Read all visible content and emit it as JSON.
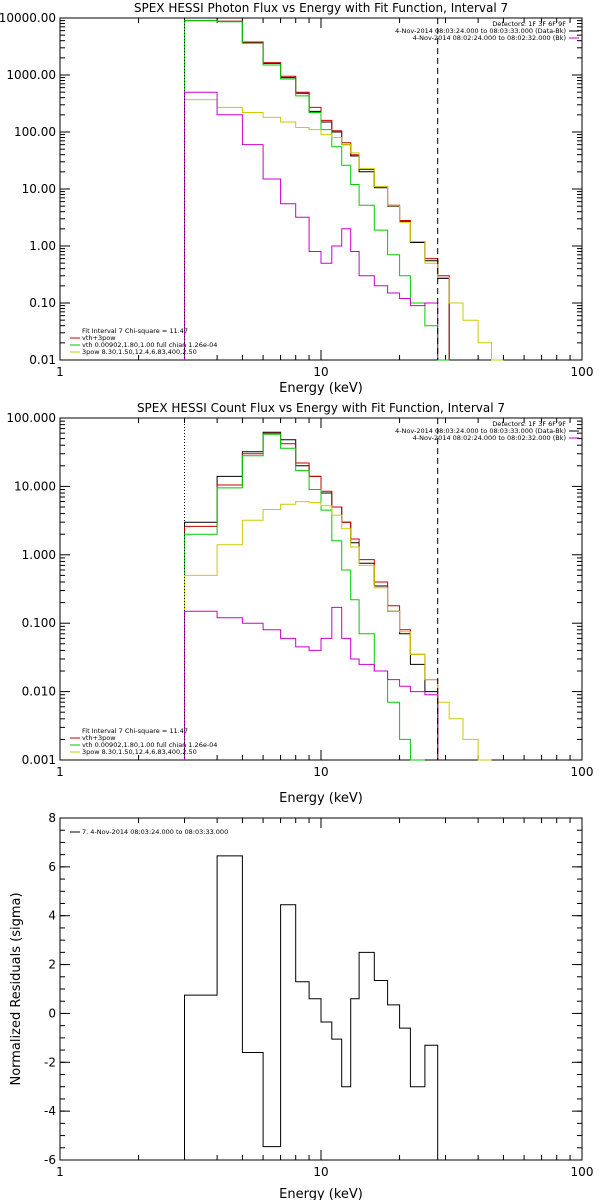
{
  "chart_data": [
    {
      "type": "step-line",
      "title": "SPEX HESSI Photon Flux vs Energy with Fit Function, Interval 7",
      "xlabel": "Energy (keV)",
      "xscale": "log",
      "yscale": "log",
      "xlim": [
        1,
        100
      ],
      "ylim": [
        0.01,
        10000
      ],
      "ytick_labels": [
        "0.01",
        "0.10",
        "1.00",
        "10.00",
        "100.00",
        "1000.00",
        "10000.00"
      ],
      "ytick_values": [
        0.01,
        0.1,
        1,
        10,
        100,
        1000,
        10000
      ],
      "xtick_labels": [
        "1",
        "10",
        "100"
      ],
      "xtick_values": [
        1,
        10,
        100
      ],
      "energy_edges": [
        3,
        4,
        5,
        6,
        7,
        8,
        9,
        10,
        11,
        12,
        13,
        14,
        16,
        18,
        20,
        22,
        25,
        28
      ],
      "legend_right": [
        {
          "text": "Detectors: 1F 3F 6F 9F",
          "color": "#000000"
        },
        {
          "text": "4-Nov-2014 08:03:24.000 to 08:03:33.000 (Data-Bk)",
          "color": "#000000"
        },
        {
          "text": "4-Nov-2014 08:02:24.000 to 08:02:32.000 (Bk)",
          "color": "#cc00cc"
        }
      ],
      "legend_left": [
        {
          "text": "Fit Interval 7   Chi-square = 11.47",
          "color": "#000000"
        },
        {
          "text": "vth+3pow",
          "color": "#cc0000"
        },
        {
          "text": "vth 0.00902,1.80,1.00  full chian 1.26e-04",
          "color": "#00cc00"
        },
        {
          "text": "3pow 8.30,1.50,12.4,6.83,400,2.50",
          "color": "#cccc00"
        }
      ],
      "vlines": [
        {
          "x": 3,
          "style": "dotted",
          "color": "#000000"
        },
        {
          "x": 28,
          "style": "dashed",
          "color": "#000000"
        }
      ],
      "series": [
        {
          "name": "Data-Bk",
          "color": "#000000",
          "values": [
            10000,
            8700,
            3700,
            1600,
            900,
            480,
            230,
            150,
            100,
            60,
            38,
            20,
            10.5,
            5,
            2.7,
            1.15,
            0.55,
            0.27
          ]
        },
        {
          "name": "vth+3pow",
          "color": "#cc0000",
          "values": [
            9000,
            8800,
            3800,
            1650,
            950,
            500,
            270,
            160,
            105,
            65,
            40,
            22,
            11,
            5.2,
            2.8,
            1.2,
            0.6,
            0.3
          ]
        },
        {
          "name": "vth",
          "color": "#00cc00",
          "values": [
            9000,
            8600,
            3600,
            1500,
            850,
            430,
            220,
            110,
            55,
            26,
            12,
            5.2,
            1.9,
            0.7,
            0.3,
            0.1,
            0.04,
            0.01
          ]
        },
        {
          "name": "3pow",
          "color": "#cccc00",
          "values": [
            370,
            270,
            220,
            180,
            150,
            120,
            110,
            90,
            80,
            60,
            43,
            23,
            11,
            5.1,
            2.6,
            1.2,
            0.5,
            0.28,
            0.1,
            0.05,
            0.02,
            0.01
          ]
        },
        {
          "name": "Bk",
          "color": "#cc00cc",
          "values": [
            500,
            200,
            60,
            15,
            5.5,
            3.2,
            0.8,
            0.5,
            1,
            2,
            0.8,
            0.3,
            0.2,
            0.15,
            0.12,
            0.09,
            0.1
          ]
        }
      ]
    },
    {
      "type": "step-line",
      "title": "SPEX HESSI Count Flux vs Energy with Fit Function, Interval 7",
      "xlabel": "Energy (keV)",
      "xscale": "log",
      "yscale": "log",
      "xlim": [
        1,
        100
      ],
      "ylim": [
        0.001,
        100
      ],
      "ytick_labels": [
        "0.001",
        "0.010",
        "0.100",
        "1.000",
        "10.000",
        "100.000"
      ],
      "ytick_values": [
        0.001,
        0.01,
        0.1,
        1,
        10,
        100
      ],
      "xtick_labels": [
        "1",
        "10",
        "100"
      ],
      "xtick_values": [
        1,
        10,
        100
      ],
      "legend_right": [
        {
          "text": "Detectors: 1F 3F 6F 9F",
          "color": "#000000"
        },
        {
          "text": "4-Nov-2014 08:03:24.000 to 08:03:33.000 (Data-Bk)",
          "color": "#000000"
        },
        {
          "text": "4-Nov-2014 08:02:24.000 to 08:02:32.000 (Bk)",
          "color": "#cc00cc"
        }
      ],
      "legend_left": [
        {
          "text": "Fit Interval 7   Chi-square = 11.47",
          "color": "#000000"
        },
        {
          "text": "vth+3pow",
          "color": "#cc0000"
        },
        {
          "text": "vth 0.00902,1.80,1.00  full chian 1.26e-04",
          "color": "#00cc00"
        },
        {
          "text": "3pow 8.30,1.50,12.4,6.83,400,2.50",
          "color": "#cccc00"
        }
      ],
      "vlines": [
        {
          "x": 3,
          "style": "dotted",
          "color": "#000000"
        },
        {
          "x": 28,
          "style": "dashed",
          "color": "#000000"
        }
      ],
      "series": [
        {
          "name": "Data-Bk",
          "color": "#000000",
          "values": [
            3.0,
            14,
            32,
            62,
            48,
            20,
            14,
            8,
            5,
            3,
            1.5,
            0.75,
            0.35,
            0.15,
            0.07,
            0.025,
            0.01
          ]
        },
        {
          "name": "vth+3pow",
          "color": "#cc0000",
          "values": [
            2.6,
            10.5,
            30,
            60,
            42,
            22,
            14,
            8.5,
            5,
            3,
            1.7,
            0.85,
            0.4,
            0.18,
            0.08,
            0.035,
            0.015
          ]
        },
        {
          "name": "vth",
          "color": "#00cc00",
          "values": [
            2.0,
            9.5,
            28,
            58,
            36,
            17,
            9,
            4.5,
            1.6,
            0.6,
            0.22,
            0.07,
            0.02,
            0.007,
            0.002,
            0.001
          ]
        },
        {
          "name": "3pow",
          "color": "#cccc00",
          "values": [
            0.5,
            1.4,
            3.2,
            4.6,
            5.5,
            6,
            5.8,
            5.2,
            3.8,
            2.4,
            1.3,
            0.7,
            0.33,
            0.15,
            0.075,
            0.035,
            0.015,
            0.007,
            0.004,
            0.002,
            0.001
          ]
        },
        {
          "name": "Bk",
          "color": "#cc00cc",
          "values": [
            0.15,
            0.12,
            0.1,
            0.08,
            0.06,
            0.045,
            0.04,
            0.06,
            0.17,
            0.06,
            0.03,
            0.025,
            0.02,
            0.015,
            0.012,
            0.01,
            0.009
          ]
        }
      ]
    },
    {
      "type": "step-line",
      "title": "",
      "xlabel": "Energy (keV)",
      "ylabel": "Normalized Residuals (sigma)",
      "xscale": "log",
      "yscale": "linear",
      "xlim": [
        1,
        100
      ],
      "ylim": [
        -6,
        8
      ],
      "ytick_labels": [
        "-6",
        "-4",
        "-2",
        "0",
        "2",
        "4",
        "6",
        "8"
      ],
      "ytick_values": [
        -6,
        -4,
        -2,
        0,
        2,
        4,
        6,
        8
      ],
      "xtick_labels": [
        "1",
        "10",
        "100"
      ],
      "xtick_values": [
        1,
        10,
        100
      ],
      "legend_left": [
        {
          "text": "7.  4-Nov-2014 08:03:24.000 to 08:03:33.000",
          "color": "#000000"
        }
      ],
      "series": [
        {
          "name": "7.",
          "color": "#000000",
          "values": [
            0.75,
            6.45,
            -1.6,
            -5.45,
            4.45,
            1.3,
            0.6,
            -0.35,
            -1.05,
            -3.0,
            0.6,
            2.5,
            1.35,
            0.35,
            -0.6,
            -3.0,
            -1.3
          ]
        }
      ]
    }
  ]
}
